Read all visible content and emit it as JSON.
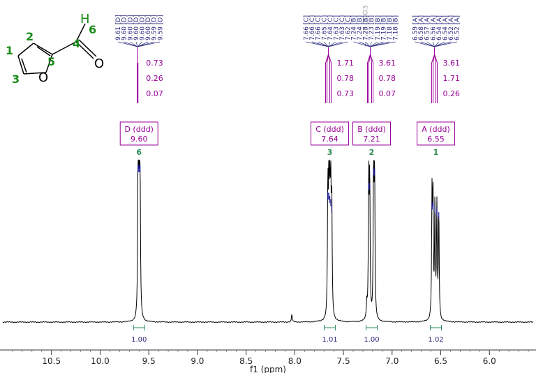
{
  "chart_data": {
    "type": "line",
    "xlabel": "f1 (ppm)",
    "xlim": [
      11.0,
      5.55
    ],
    "x_ticks": [
      "10.5",
      "10.0",
      "9.5",
      "9.0",
      "8.5",
      "8.0",
      "7.5",
      "7.0",
      "6.5",
      "6.0"
    ],
    "x_tick_values": [
      10.5,
      10.0,
      9.5,
      9.0,
      8.5,
      8.0,
      7.5,
      7.0,
      6.5,
      6.0
    ],
    "line_color": "#000000",
    "peak_tip_color": "#1a1a9a",
    "label_color": "#2a2a80",
    "coupling_color": "#990099",
    "integral_color": "#2e8b57",
    "peaks": [
      {
        "ppm": 9.61,
        "height": 0.97
      },
      {
        "ppm": 9.6,
        "height": 0.97
      },
      {
        "ppm": 9.59,
        "height": 0.97
      },
      {
        "ppm": 7.66,
        "height": 0.8
      },
      {
        "ppm": 7.65,
        "height": 0.8
      },
      {
        "ppm": 7.64,
        "height": 0.78
      },
      {
        "ppm": 7.63,
        "height": 0.76
      },
      {
        "ppm": 7.62,
        "height": 0.72
      },
      {
        "ppm": 7.24,
        "height": 0.86
      },
      {
        "ppm": 7.23,
        "height": 0.86
      },
      {
        "ppm": 7.19,
        "height": 0.95
      },
      {
        "ppm": 7.18,
        "height": 0.95
      },
      {
        "ppm": 6.59,
        "height": 0.74
      },
      {
        "ppm": 6.58,
        "height": 0.74
      },
      {
        "ppm": 6.56,
        "height": 0.72
      },
      {
        "ppm": 6.54,
        "height": 0.7
      },
      {
        "ppm": 6.52,
        "height": 0.68
      },
      {
        "ppm": 8.03,
        "height": 0.05
      },
      {
        "ppm": 7.26,
        "height": 0.1
      }
    ],
    "peak_labels": [
      {
        "group": "D",
        "items": [
          "9.61 [D]",
          "9.60 [D]",
          "9.60 [D]",
          "9.60 [D]",
          "9.60 [D]",
          "9.60 [D]",
          "9.59 [D]",
          "9.59 [D]"
        ]
      },
      {
        "group": "C",
        "items": [
          "7.66 [C]",
          "7.66 [C]",
          "7.66 [C]",
          "7.65 [C]",
          "7.64 [C]",
          "7.63 [C]",
          "7.63 [C]",
          "7.62 [C]"
        ]
      },
      {
        "group": "solvent",
        "items": [
          "7.26 CDCl3"
        ]
      },
      {
        "group": "B",
        "items": [
          "7.24 [B]",
          "7.24 [B]",
          "7.23 [B]",
          "7.23 [B]",
          "7.19 [B]",
          "7.19 [B]",
          "7.18 [B]",
          "7.18 [B]"
        ]
      },
      {
        "group": "A",
        "items": [
          "6.59 [A]",
          "6.58 [A]",
          "6.57 [A]",
          "6.56 [A]",
          "6.54 [A]",
          "6.54 [A]",
          "6.52 [A]",
          "6.52 [A]"
        ]
      }
    ],
    "multiplets": [
      {
        "label": "D (ddd)",
        "shift": "9.60",
        "ppm": 9.6,
        "couplings": [
          "0.73",
          "0.26",
          "0.07"
        ],
        "number": "6",
        "integral": "1.00"
      },
      {
        "label": "C (ddd)",
        "shift": "7.64",
        "ppm": 7.64,
        "couplings": [
          "1.71",
          "0.78",
          "0.73"
        ],
        "number": "3",
        "integral": "1.01"
      },
      {
        "label": "B (ddd)",
        "shift": "7.21",
        "ppm": 7.21,
        "couplings": [
          "3.61",
          "0.78",
          "0.07"
        ],
        "number": "2",
        "integral": "1.00"
      },
      {
        "label": "A (ddd)",
        "shift": "6.55",
        "ppm": 6.55,
        "couplings": [
          "3.61",
          "1.71",
          "0.26"
        ],
        "number": "1",
        "integral": "1.02"
      }
    ]
  },
  "molecule": {
    "atoms": [
      "1",
      "2",
      "3",
      "4",
      "5",
      "6"
    ],
    "oxygen": "O",
    "hydrogen": "H",
    "atom_color": "#1a8c1a"
  }
}
